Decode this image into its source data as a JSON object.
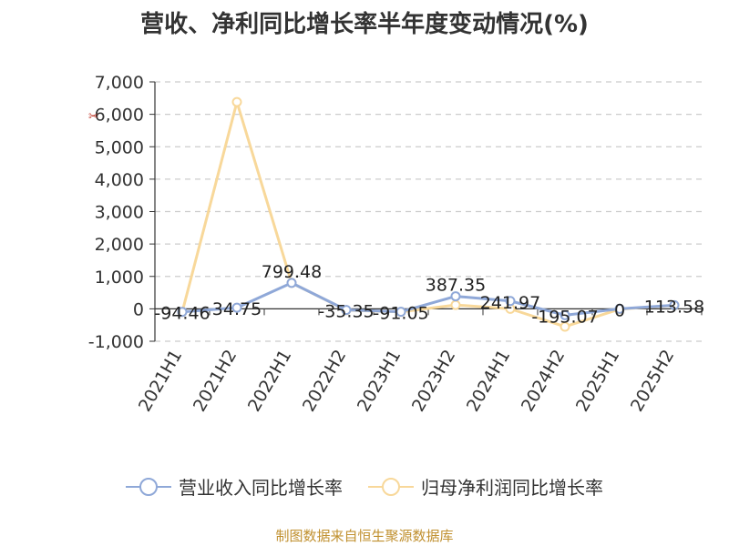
{
  "title": "营收、净利同比增长率半年度变动情况(%)",
  "source": "制图数据来自恒生聚源数据库",
  "chart_data": {
    "type": "line",
    "categories": [
      "2021H1",
      "2021H2",
      "2022H1",
      "2022H2",
      "2023H1",
      "2023H2",
      "2024H1",
      "2024H2",
      "2025H1",
      "2025H2"
    ],
    "ylim": [
      -1000,
      7000
    ],
    "yticks": [
      -1000,
      0,
      1000,
      2000,
      3000,
      4000,
      5000,
      6000,
      7000
    ],
    "ytick_labels": [
      "-1,000",
      "0",
      "1,000",
      "2,000",
      "3,000",
      "4,000",
      "5,000",
      "6,000",
      "7,000"
    ],
    "grid": true,
    "legend_position": "bottom",
    "series": [
      {
        "name": "营业收入同比增长率",
        "color": "#8fa8d8",
        "values": [
          -94.46,
          34.75,
          799.48,
          -35.35,
          -91.05,
          387.35,
          241.97,
          -195.07,
          0,
          113.58
        ],
        "labels": [
          "-94.46",
          "34.75",
          "799.48",
          "-35.35",
          "-91.05",
          "387.35",
          "241.97",
          "-195.07",
          "0",
          "113.58"
        ]
      },
      {
        "name": "归母净利润同比增长率",
        "color": "#f8d89a",
        "values": [
          -95,
          6380,
          800,
          -40,
          -95,
          120,
          0,
          -550,
          -10,
          110
        ],
        "labels": []
      }
    ]
  }
}
